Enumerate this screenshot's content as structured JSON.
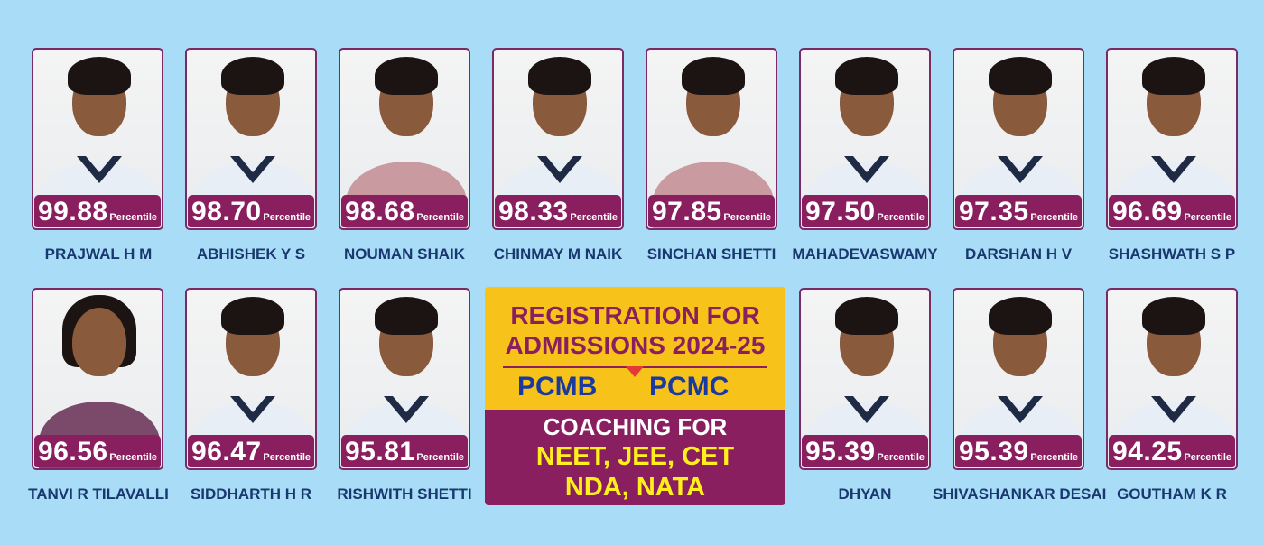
{
  "toppers_row1": [
    {
      "name": "PRAJWAL H M",
      "score": "99.88"
    },
    {
      "name": "ABHISHEK Y S",
      "score": "98.70"
    },
    {
      "name": "NOUMAN SHAIK",
      "score": "98.68"
    },
    {
      "name": "CHINMAY M NAIK",
      "score": "98.33"
    },
    {
      "name": "SINCHAN SHETTI",
      "score": "97.85"
    },
    {
      "name": "MAHADEVASWAMY",
      "score": "97.50"
    },
    {
      "name": "DARSHAN H V",
      "score": "97.35"
    },
    {
      "name": "SHASHWATH S P",
      "score": "96.69"
    }
  ],
  "toppers_row2": [
    {
      "name": "TANVI R TILAVALLI",
      "score": "96.56"
    },
    {
      "name": "SIDDHARTH H R",
      "score": "96.47"
    },
    {
      "name": "RISHWITH SHETTI",
      "score": "95.81"
    },
    {
      "name": "DHYAN",
      "score": "95.39"
    },
    {
      "name": "SHIVASHANKAR DESAI",
      "score": "95.39"
    },
    {
      "name": "GOUTHAM K R",
      "score": "94.25"
    }
  ],
  "percentile_label": "Percentile",
  "promo": {
    "line1": "REGISTRATION FOR",
    "line2": "ADMISSIONS 2024-25",
    "stream1": "PCMB",
    "stream2": "PCMC",
    "coaching": "COACHING FOR",
    "exams1": "NEET, JEE, CET",
    "exams2": "NDA, NATA"
  },
  "colors": {
    "background": "#a9dcf6",
    "badge": "#8a1f5f",
    "name_text": "#19386f",
    "promo_yellow": "#f7c21a",
    "promo_blue": "#1a3a9e",
    "exam_yellow": "#ffef1a"
  }
}
